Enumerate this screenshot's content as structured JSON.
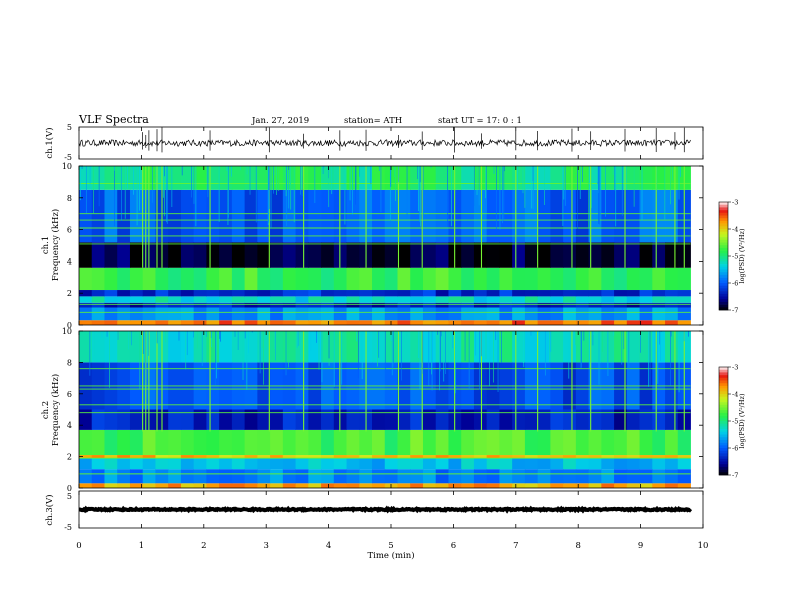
{
  "header": {
    "title": "VLF  Spectra",
    "date": "Jan.  27,  2019",
    "station": "station= ATH",
    "start": "start  UT  =    17: 0   : 1"
  },
  "chart_data": [
    {
      "id": "ch1-waveform",
      "type": "line",
      "ylabel": "ch.1(V)",
      "ylim": [
        -5,
        5
      ],
      "ytick_labels": [
        "5",
        "-5"
      ],
      "xlim": [
        0,
        10
      ],
      "x_end": 9.8,
      "baseline": 0,
      "noise_amplitude": 1,
      "spikes_x": [
        1.02,
        1.07,
        1.12,
        1.25,
        1.33,
        2.1,
        3.05,
        3.6,
        4.18,
        4.6,
        5.12,
        5.5,
        6.02,
        6.45,
        7.0,
        7.35,
        7.9,
        8.2,
        8.75,
        9.25,
        9.55,
        9.7
      ]
    },
    {
      "id": "ch1-spectrogram",
      "type": "heatmap",
      "ylabel": "ch.1\nFrequency  (kHz)",
      "ylim": [
        0,
        10
      ],
      "ytick_labels": [
        "0",
        "2",
        "4",
        "6",
        "8",
        "10"
      ],
      "xlim": [
        0,
        10
      ],
      "x_end": 9.8,
      "colorbar": {
        "label": "log(PSD) (V²/Hz)",
        "range": [
          -7,
          -3
        ],
        "tick_labels": [
          "-3",
          "-4",
          "-5",
          "-6",
          "-7"
        ]
      },
      "bands": [
        {
          "from": 0,
          "to": 0.3,
          "value": -3.6
        },
        {
          "from": 0.3,
          "to": 1.1,
          "value": -5.7
        },
        {
          "from": 1.1,
          "to": 1.4,
          "value": -6.4
        },
        {
          "from": 1.4,
          "to": 1.8,
          "value": -5.3
        },
        {
          "from": 1.8,
          "to": 2.2,
          "value": -6.3
        },
        {
          "from": 2.2,
          "to": 3.6,
          "value": -4.8
        },
        {
          "from": 3.6,
          "to": 5.2,
          "value": -6.85
        },
        {
          "from": 5.2,
          "to": 8.5,
          "value": -6.0
        },
        {
          "from": 8.5,
          "to": 10,
          "value": -5.0
        }
      ],
      "lines_khz": [
        0.8,
        1.3,
        5.1,
        5.6,
        6.1,
        6.6,
        7.0,
        8.9
      ],
      "sferics_x": [
        1.02,
        1.07,
        1.12,
        1.25,
        1.33,
        2.1,
        3.05,
        3.6,
        4.18,
        4.6,
        5.12,
        5.5,
        6.02,
        6.45,
        7.0,
        7.35,
        7.9,
        8.2,
        8.75,
        9.25,
        9.55,
        9.7
      ]
    },
    {
      "id": "ch2-spectrogram",
      "type": "heatmap",
      "ylabel": "ch.2\nFrequency  (kHz)",
      "ylim": [
        0,
        10
      ],
      "ytick_labels": [
        "0",
        "2",
        "4",
        "6",
        "8",
        "10"
      ],
      "xlim": [
        0,
        10
      ],
      "x_end": 9.8,
      "colorbar": {
        "label": "log(PSD) (V²/Hz)",
        "range": [
          -7,
          -3
        ],
        "tick_labels": [
          "-3",
          "-4",
          "-5",
          "-6",
          "-7"
        ]
      },
      "bands": [
        {
          "from": 0,
          "to": 0.3,
          "value": -3.8
        },
        {
          "from": 0.3,
          "to": 1.2,
          "value": -5.8
        },
        {
          "from": 1.2,
          "to": 1.9,
          "value": -5.5
        },
        {
          "from": 1.9,
          "to": 2.1,
          "value": -3.9
        },
        {
          "from": 2.1,
          "to": 3.7,
          "value": -4.7
        },
        {
          "from": 3.7,
          "to": 5.0,
          "value": -6.4
        },
        {
          "from": 5.0,
          "to": 8.0,
          "value": -6.1
        },
        {
          "from": 8.0,
          "to": 10,
          "value": -5.2
        }
      ],
      "lines_khz": [
        0.9,
        1.9,
        4.8,
        5.3,
        6.3,
        6.5,
        7.6
      ],
      "sferics_x": [
        1.02,
        1.07,
        1.12,
        1.25,
        1.33,
        2.1,
        3.05,
        3.6,
        4.18,
        4.6,
        5.12,
        5.5,
        6.02,
        6.45,
        7.0,
        7.35,
        7.9,
        8.2,
        8.75,
        9.25,
        9.55,
        9.7
      ]
    },
    {
      "id": "ch3-waveform",
      "type": "line",
      "ylabel": "ch.3(V)",
      "ylim": [
        -5,
        5
      ],
      "ytick_labels": [
        "5",
        "-5"
      ],
      "xlim": [
        0,
        10
      ],
      "x_end": 9.8,
      "baseline": 0,
      "noise_amplitude": 0.2,
      "spikes_x": []
    }
  ],
  "xaxis": {
    "label": "Time  (min)",
    "tick_labels": [
      "0",
      "1",
      "2",
      "3",
      "4",
      "5",
      "6",
      "7",
      "8",
      "9",
      "10"
    ]
  }
}
